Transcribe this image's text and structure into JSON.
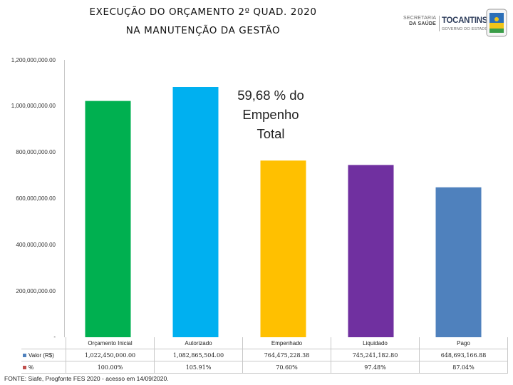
{
  "header": {
    "title_line1": "EXECUÇÃO DO ORÇAMENTO 2º QUAD. 2020",
    "title_line2": "NA MANUTENÇÃO DA GESTÃO"
  },
  "logos": {
    "secretaria_line1": "SECRETARIA",
    "secretaria_line2": "DA SAÚDE",
    "tocantins": "TOCANTINS",
    "governo": "GOVERNO DO ESTADO"
  },
  "annotation": {
    "line1": "59,68 % do",
    "line2": "Empenho",
    "line3": "Total"
  },
  "chart_data": {
    "type": "bar",
    "title": "EXECUÇÃO DO ORÇAMENTO 2º QUAD. 2020 NA MANUTENÇÃO DA GESTÃO",
    "categories": [
      "Orçamento Inicial",
      "Autorizado",
      "Empenhado",
      "Liquidado",
      "Pago"
    ],
    "values": [
      1022450000,
      1082865504,
      764475228.38,
      745241182.8,
      648693166.88
    ],
    "colors": [
      "#00b050",
      "#00b0f0",
      "#ffc000",
      "#7030a0",
      "#4f81bd"
    ],
    "ylim": [
      0,
      1200000000
    ],
    "yticks": [
      0,
      200000000,
      400000000,
      600000000,
      800000000,
      1000000000,
      1200000000
    ],
    "ytick_labels": [
      "-",
      "200,000,000.00",
      "400,000,000.00",
      "600,000,000.00",
      "800,000,000.00",
      "1,000,000,000.00",
      "1,200,000,000.00"
    ],
    "grid": false,
    "xlabel": "",
    "ylabel": ""
  },
  "data_table": {
    "rows": [
      {
        "label": "Valor (R$)",
        "swatch_color": "#4f81bd",
        "cells": [
          "1,022,450,000.00",
          "1,082,865,504.00",
          "764,475,228.38",
          "745,241,182.80",
          "648,693,166.88"
        ]
      },
      {
        "label": "%",
        "swatch_color": "#c0504d",
        "cells": [
          "100.00%",
          "105.91%",
          "70.60%",
          "97.48%",
          "87.04%"
        ]
      }
    ]
  },
  "footer": {
    "source": "FONTE: Siafe, Progfonte FES 2020 - acesso em 14/09/2020."
  }
}
